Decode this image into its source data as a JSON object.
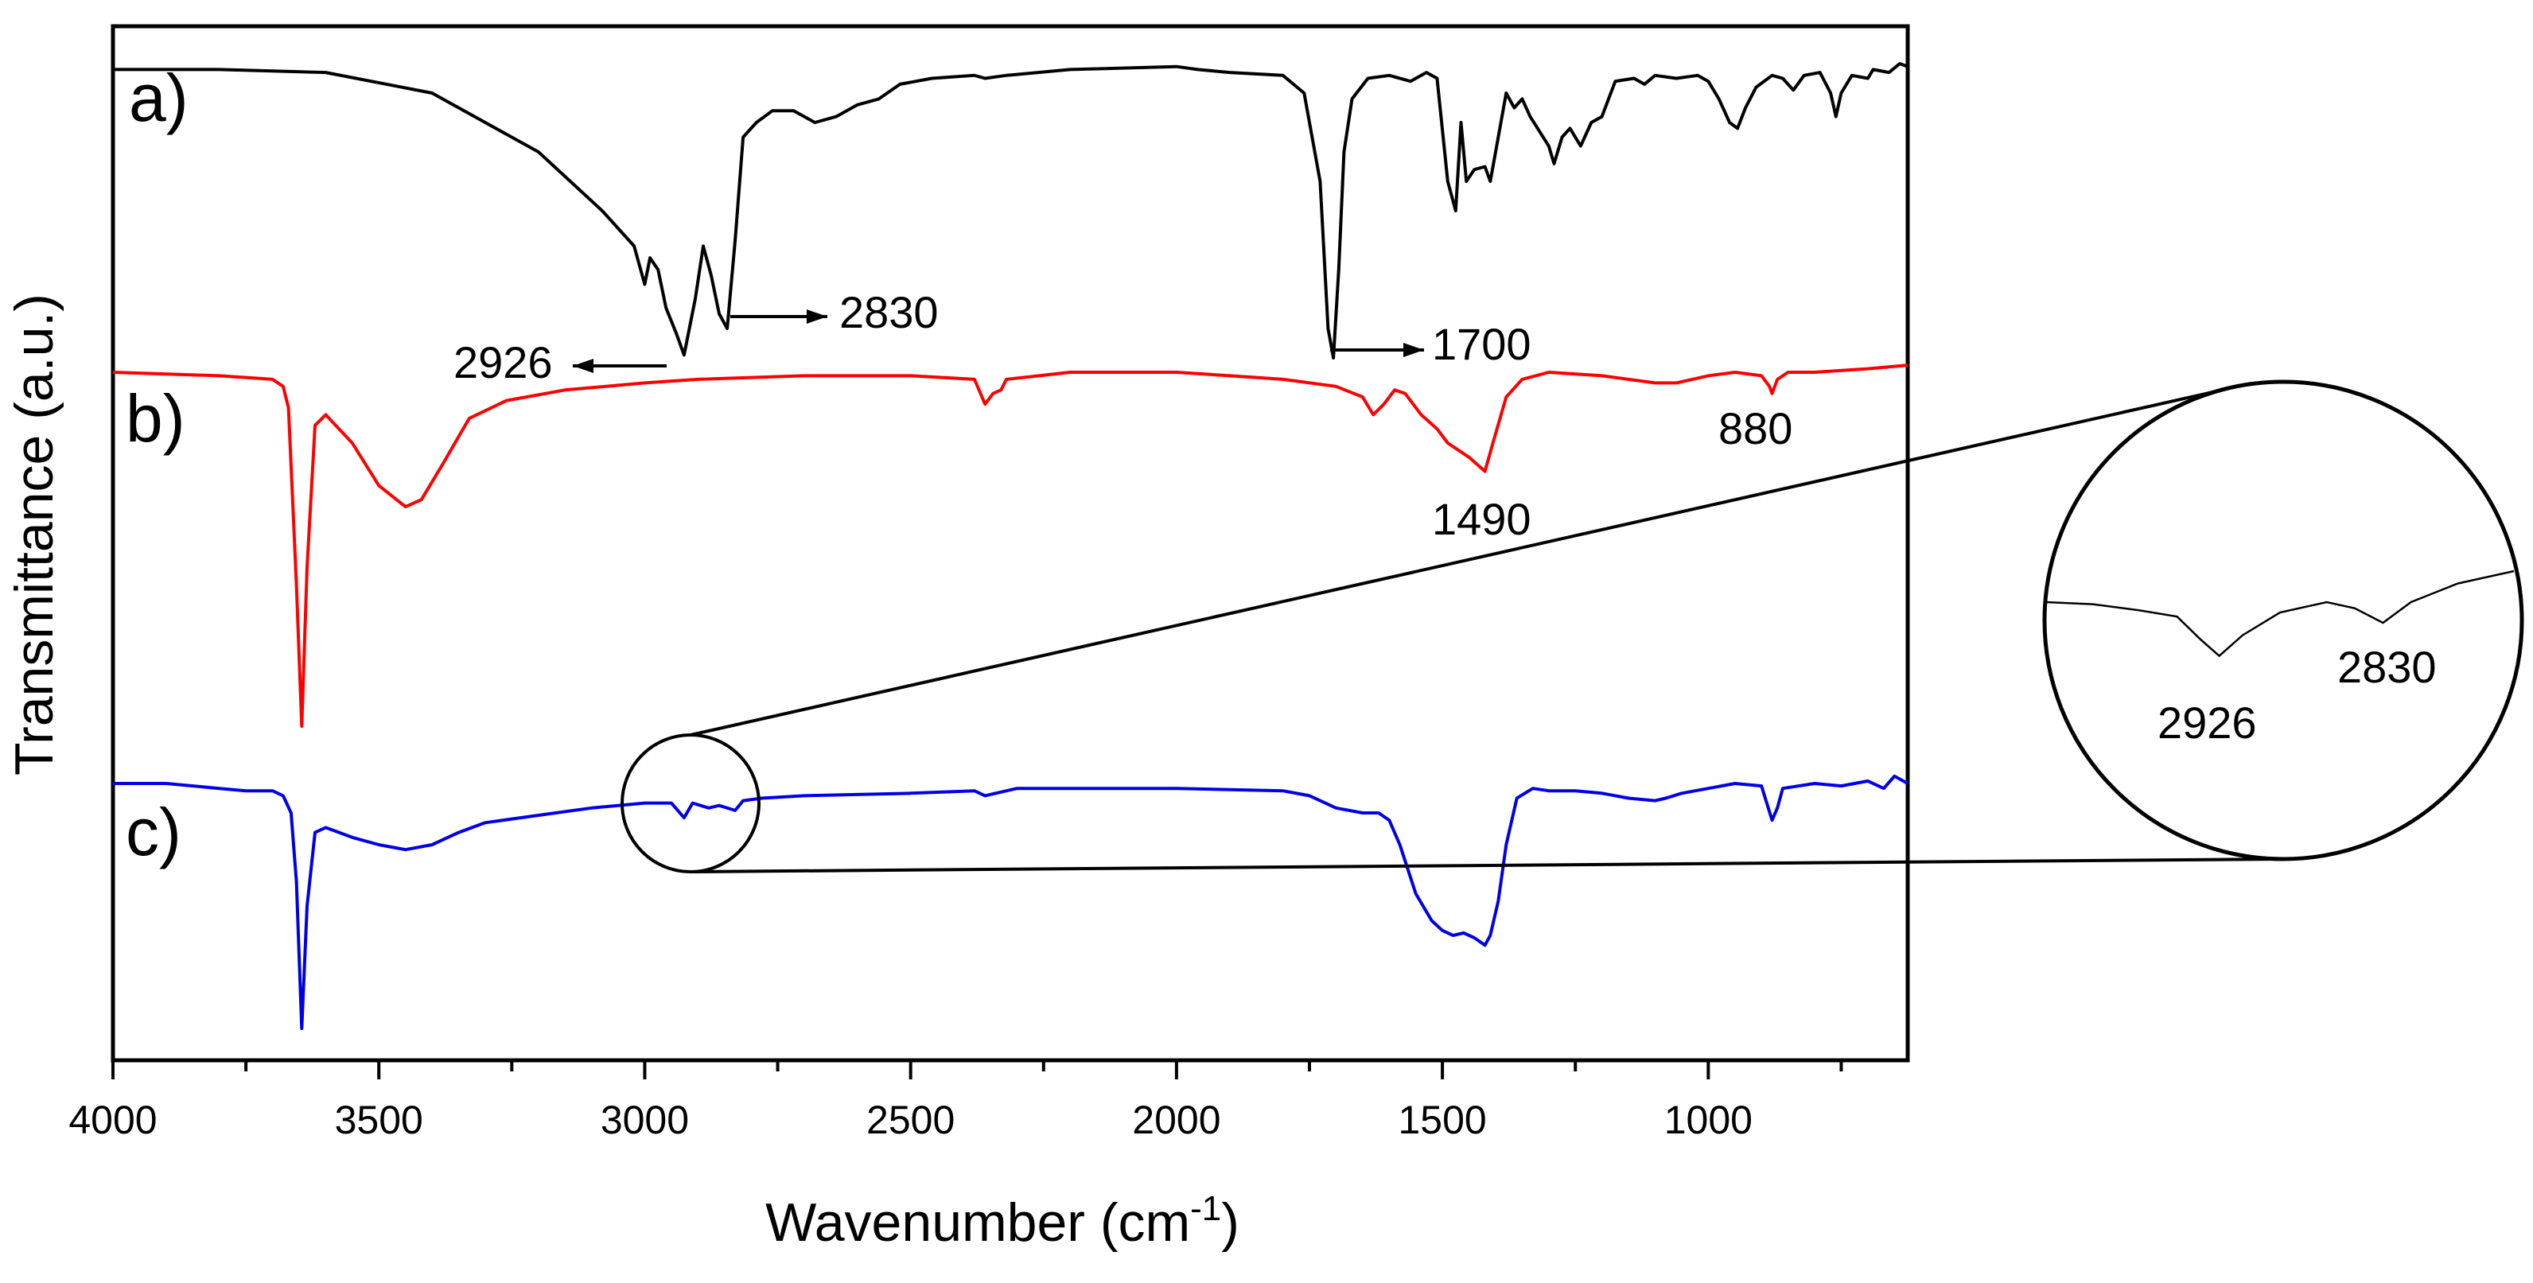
{
  "chart_data": {
    "type": "line",
    "title": "",
    "xlabel": "Wavenumber (cm",
    "xlabel_superscript": "-1",
    "xlabel_suffix": ")",
    "ylabel": "Transmittance (a.u.)",
    "xlim": [
      4000,
      625
    ],
    "x_reversed": true,
    "y_ticks_shown": false,
    "grid": false,
    "x_ticks": [
      "4000",
      "3500",
      "3000",
      "2500",
      "2000",
      "1500",
      "1000"
    ],
    "series": [
      {
        "name": "a)",
        "color": "#000000",
        "points": [
          [
            4000,
            0.02
          ],
          [
            3800,
            0.02
          ],
          [
            3600,
            0.03
          ],
          [
            3400,
            0.1
          ],
          [
            3200,
            0.3
          ],
          [
            3080,
            0.5
          ],
          [
            3020,
            0.62
          ],
          [
            3000,
            0.75
          ],
          [
            2990,
            0.66
          ],
          [
            2975,
            0.7
          ],
          [
            2960,
            0.83
          ],
          [
            2940,
            0.92
          ],
          [
            2926,
            0.99
          ],
          [
            2905,
            0.8
          ],
          [
            2890,
            0.62
          ],
          [
            2875,
            0.72
          ],
          [
            2860,
            0.85
          ],
          [
            2845,
            0.9
          ],
          [
            2830,
            0.6
          ],
          [
            2815,
            0.25
          ],
          [
            2790,
            0.2
          ],
          [
            2760,
            0.16
          ],
          [
            2720,
            0.16
          ],
          [
            2680,
            0.2
          ],
          [
            2640,
            0.18
          ],
          [
            2600,
            0.14
          ],
          [
            2560,
            0.12
          ],
          [
            2520,
            0.07
          ],
          [
            2460,
            0.05
          ],
          [
            2380,
            0.04
          ],
          [
            2360,
            0.05
          ],
          [
            2320,
            0.04
          ],
          [
            2200,
            0.02
          ],
          [
            2000,
            0.01
          ],
          [
            1960,
            0.02
          ],
          [
            1900,
            0.03
          ],
          [
            1800,
            0.04
          ],
          [
            1760,
            0.1
          ],
          [
            1730,
            0.4
          ],
          [
            1715,
            0.9
          ],
          [
            1705,
            1.0
          ],
          [
            1695,
            0.7
          ],
          [
            1685,
            0.3
          ],
          [
            1670,
            0.12
          ],
          [
            1640,
            0.05
          ],
          [
            1600,
            0.04
          ],
          [
            1560,
            0.06
          ],
          [
            1530,
            0.03
          ],
          [
            1510,
            0.05
          ],
          [
            1490,
            0.4
          ],
          [
            1475,
            0.5
          ],
          [
            1465,
            0.2
          ],
          [
            1455,
            0.4
          ],
          [
            1440,
            0.36
          ],
          [
            1420,
            0.35
          ],
          [
            1410,
            0.4
          ],
          [
            1400,
            0.3
          ],
          [
            1380,
            0.1
          ],
          [
            1365,
            0.15
          ],
          [
            1350,
            0.12
          ],
          [
            1335,
            0.18
          ],
          [
            1300,
            0.28
          ],
          [
            1290,
            0.34
          ],
          [
            1275,
            0.25
          ],
          [
            1260,
            0.22
          ],
          [
            1240,
            0.28
          ],
          [
            1220,
            0.2
          ],
          [
            1200,
            0.18
          ],
          [
            1175,
            0.06
          ],
          [
            1140,
            0.05
          ],
          [
            1120,
            0.07
          ],
          [
            1100,
            0.04
          ],
          [
            1060,
            0.05
          ],
          [
            1020,
            0.04
          ],
          [
            1000,
            0.06
          ],
          [
            980,
            0.12
          ],
          [
            960,
            0.2
          ],
          [
            945,
            0.22
          ],
          [
            930,
            0.15
          ],
          [
            910,
            0.08
          ],
          [
            880,
            0.04
          ],
          [
            860,
            0.05
          ],
          [
            840,
            0.09
          ],
          [
            820,
            0.04
          ],
          [
            790,
            0.03
          ],
          [
            770,
            0.1
          ],
          [
            760,
            0.18
          ],
          [
            750,
            0.1
          ],
          [
            730,
            0.04
          ],
          [
            700,
            0.05
          ],
          [
            690,
            0.02
          ],
          [
            660,
            0.03
          ],
          [
            640,
            0.0
          ],
          [
            625,
            0.01
          ]
        ]
      },
      {
        "name": "b)",
        "color": "#ff0000",
        "points": [
          [
            4000,
            0.0
          ],
          [
            3800,
            0.01
          ],
          [
            3700,
            0.02
          ],
          [
            3680,
            0.04
          ],
          [
            3670,
            0.1
          ],
          [
            3655,
            0.6
          ],
          [
            3645,
            1.0
          ],
          [
            3635,
            0.55
          ],
          [
            3620,
            0.15
          ],
          [
            3600,
            0.12
          ],
          [
            3550,
            0.2
          ],
          [
            3500,
            0.32
          ],
          [
            3450,
            0.38
          ],
          [
            3420,
            0.36
          ],
          [
            3380,
            0.26
          ],
          [
            3330,
            0.13
          ],
          [
            3260,
            0.08
          ],
          [
            3150,
            0.05
          ],
          [
            3000,
            0.03
          ],
          [
            2900,
            0.02
          ],
          [
            2700,
            0.01
          ],
          [
            2500,
            0.01
          ],
          [
            2380,
            0.02
          ],
          [
            2360,
            0.09
          ],
          [
            2345,
            0.06
          ],
          [
            2330,
            0.05
          ],
          [
            2320,
            0.02
          ],
          [
            2200,
            0.0
          ],
          [
            2000,
            0.0
          ],
          [
            1900,
            0.01
          ],
          [
            1800,
            0.02
          ],
          [
            1700,
            0.04
          ],
          [
            1650,
            0.07
          ],
          [
            1630,
            0.12
          ],
          [
            1610,
            0.09
          ],
          [
            1590,
            0.05
          ],
          [
            1570,
            0.06
          ],
          [
            1540,
            0.12
          ],
          [
            1510,
            0.16
          ],
          [
            1490,
            0.2
          ],
          [
            1470,
            0.22
          ],
          [
            1450,
            0.24
          ],
          [
            1435,
            0.26
          ],
          [
            1420,
            0.28
          ],
          [
            1405,
            0.2
          ],
          [
            1380,
            0.07
          ],
          [
            1350,
            0.02
          ],
          [
            1300,
            0.0
          ],
          [
            1200,
            0.01
          ],
          [
            1100,
            0.03
          ],
          [
            1060,
            0.03
          ],
          [
            1000,
            0.01
          ],
          [
            950,
            0.0
          ],
          [
            900,
            0.01
          ],
          [
            885,
            0.04
          ],
          [
            880,
            0.06
          ],
          [
            870,
            0.02
          ],
          [
            850,
            0.0
          ],
          [
            800,
            0.0
          ],
          [
            700,
            -0.01
          ],
          [
            625,
            -0.02
          ]
        ]
      },
      {
        "name": "c)",
        "color": "#0000e6",
        "points": [
          [
            4000,
            0.0
          ],
          [
            3900,
            0.0
          ],
          [
            3800,
            0.02
          ],
          [
            3750,
            0.03
          ],
          [
            3700,
            0.03
          ],
          [
            3680,
            0.05
          ],
          [
            3665,
            0.12
          ],
          [
            3655,
            0.4
          ],
          [
            3645,
            1.0
          ],
          [
            3635,
            0.5
          ],
          [
            3620,
            0.2
          ],
          [
            3600,
            0.18
          ],
          [
            3550,
            0.22
          ],
          [
            3500,
            0.25
          ],
          [
            3450,
            0.27
          ],
          [
            3400,
            0.25
          ],
          [
            3350,
            0.2
          ],
          [
            3300,
            0.16
          ],
          [
            3200,
            0.13
          ],
          [
            3100,
            0.1
          ],
          [
            3000,
            0.08
          ],
          [
            2950,
            0.08
          ],
          [
            2926,
            0.14
          ],
          [
            2910,
            0.08
          ],
          [
            2880,
            0.1
          ],
          [
            2860,
            0.09
          ],
          [
            2830,
            0.11
          ],
          [
            2815,
            0.07
          ],
          [
            2780,
            0.06
          ],
          [
            2700,
            0.05
          ],
          [
            2500,
            0.04
          ],
          [
            2380,
            0.03
          ],
          [
            2360,
            0.05
          ],
          [
            2340,
            0.04
          ],
          [
            2300,
            0.02
          ],
          [
            2200,
            0.02
          ],
          [
            2000,
            0.02
          ],
          [
            1800,
            0.03
          ],
          [
            1750,
            0.05
          ],
          [
            1700,
            0.1
          ],
          [
            1650,
            0.12
          ],
          [
            1620,
            0.12
          ],
          [
            1600,
            0.15
          ],
          [
            1580,
            0.25
          ],
          [
            1550,
            0.45
          ],
          [
            1520,
            0.56
          ],
          [
            1500,
            0.6
          ],
          [
            1480,
            0.62
          ],
          [
            1460,
            0.61
          ],
          [
            1440,
            0.63
          ],
          [
            1420,
            0.66
          ],
          [
            1410,
            0.62
          ],
          [
            1395,
            0.48
          ],
          [
            1380,
            0.25
          ],
          [
            1360,
            0.06
          ],
          [
            1330,
            0.02
          ],
          [
            1300,
            0.03
          ],
          [
            1250,
            0.03
          ],
          [
            1200,
            0.04
          ],
          [
            1150,
            0.06
          ],
          [
            1100,
            0.07
          ],
          [
            1080,
            0.06
          ],
          [
            1050,
            0.04
          ],
          [
            1000,
            0.02
          ],
          [
            950,
            0.0
          ],
          [
            900,
            0.01
          ],
          [
            880,
            0.15
          ],
          [
            870,
            0.1
          ],
          [
            860,
            0.02
          ],
          [
            800,
            0.0
          ],
          [
            750,
            0.01
          ],
          [
            700,
            -0.01
          ],
          [
            670,
            0.02
          ],
          [
            650,
            -0.03
          ],
          [
            625,
            0.0
          ]
        ]
      }
    ],
    "peak_labels": [
      {
        "series": "a)",
        "text": "2926",
        "wavenumber": 2926,
        "arrow": "left"
      },
      {
        "series": "a)",
        "text": "2830",
        "wavenumber": 2830,
        "arrow": "right"
      },
      {
        "series": "a)",
        "text": "1700",
        "wavenumber": 1700,
        "arrow": "right"
      },
      {
        "series": "b)",
        "text": "1490",
        "wavenumber": 1490,
        "arrow": "none"
      },
      {
        "series": "b)",
        "text": "880",
        "wavenumber": 880,
        "arrow": "none"
      }
    ],
    "inset": {
      "description": "magnified view of series c) around 2926 and 2830",
      "source_series": "c)",
      "color": "#000000",
      "points": [
        [
          0.0,
          0.3
        ],
        [
          0.1,
          0.32
        ],
        [
          0.2,
          0.38
        ],
        [
          0.28,
          0.44
        ],
        [
          0.33,
          0.66
        ],
        [
          0.37,
          0.82
        ],
        [
          0.42,
          0.62
        ],
        [
          0.5,
          0.4
        ],
        [
          0.6,
          0.3
        ],
        [
          0.66,
          0.36
        ],
        [
          0.72,
          0.5
        ],
        [
          0.78,
          0.3
        ],
        [
          0.88,
          0.12
        ],
        [
          1.0,
          0.0
        ]
      ],
      "labels": [
        "2926",
        "2830"
      ]
    }
  }
}
